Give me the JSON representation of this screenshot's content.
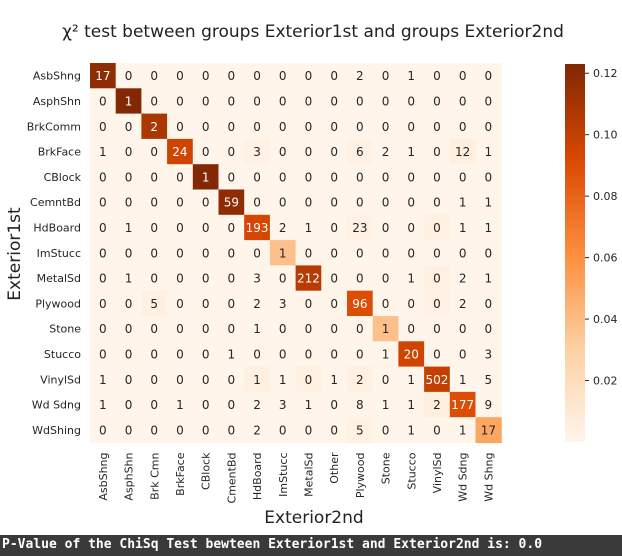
{
  "chart_data": {
    "type": "heatmap",
    "title": "χ² test between groups Exterior1st and groups Exterior2nd",
    "xlabel": "Exterior2nd",
    "ylabel": "Exterior1st",
    "rows": [
      "AsbShng",
      "AsphShn",
      "BrkComm",
      "BrkFace",
      "CBlock",
      "CemntBd",
      "HdBoard",
      "ImStucc",
      "MetalSd",
      "Plywood",
      "Stone",
      "Stucco",
      "VinylSd",
      "Wd Sdng",
      "WdShing"
    ],
    "columns": [
      "AsbShng",
      "AsphShn",
      "Brk Cmn",
      "BrkFace",
      "CBlock",
      "CmentBd",
      "HdBoard",
      "ImStucc",
      "MetalSd",
      "Other",
      "Plywood",
      "Stone",
      "Stucco",
      "VinylSd",
      "Wd Sdng",
      "Wd Shng"
    ],
    "values": [
      [
        17,
        0,
        0,
        0,
        0,
        0,
        0,
        0,
        0,
        0,
        2,
        0,
        1,
        0,
        0,
        0
      ],
      [
        0,
        1,
        0,
        0,
        0,
        0,
        0,
        0,
        0,
        0,
        0,
        0,
        0,
        0,
        0,
        0
      ],
      [
        0,
        0,
        2,
        0,
        0,
        0,
        0,
        0,
        0,
        0,
        0,
        0,
        0,
        0,
        0,
        0
      ],
      [
        1,
        0,
        0,
        24,
        0,
        0,
        3,
        0,
        0,
        0,
        6,
        2,
        1,
        0,
        12,
        1
      ],
      [
        0,
        0,
        0,
        0,
        1,
        0,
        0,
        0,
        0,
        0,
        0,
        0,
        0,
        0,
        0,
        0
      ],
      [
        0,
        0,
        0,
        0,
        0,
        59,
        0,
        0,
        0,
        0,
        0,
        0,
        0,
        0,
        1,
        1
      ],
      [
        0,
        1,
        0,
        0,
        0,
        0,
        193,
        2,
        1,
        0,
        23,
        0,
        0,
        0,
        1,
        1
      ],
      [
        0,
        0,
        0,
        0,
        0,
        0,
        0,
        1,
        0,
        0,
        0,
        0,
        0,
        0,
        0,
        0
      ],
      [
        0,
        1,
        0,
        0,
        0,
        0,
        3,
        0,
        212,
        0,
        0,
        0,
        1,
        0,
        2,
        1
      ],
      [
        0,
        0,
        5,
        0,
        0,
        0,
        2,
        3,
        0,
        0,
        96,
        0,
        0,
        0,
        2,
        0
      ],
      [
        0,
        0,
        0,
        0,
        0,
        0,
        1,
        0,
        0,
        0,
        0,
        1,
        0,
        0,
        0,
        0
      ],
      [
        0,
        0,
        0,
        0,
        0,
        1,
        0,
        0,
        0,
        0,
        0,
        1,
        20,
        0,
        0,
        3
      ],
      [
        1,
        0,
        0,
        0,
        0,
        0,
        1,
        1,
        0,
        1,
        2,
        0,
        1,
        502,
        1,
        5
      ],
      [
        1,
        0,
        0,
        1,
        0,
        0,
        2,
        3,
        1,
        0,
        8,
        1,
        1,
        2,
        177,
        9
      ],
      [
        0,
        0,
        0,
        0,
        0,
        0,
        2,
        0,
        0,
        0,
        5,
        0,
        1,
        0,
        1,
        17
      ]
    ],
    "highlight_cells": [
      [
        0,
        0,
        0.118
      ],
      [
        1,
        1,
        0.122
      ],
      [
        2,
        2,
        0.108
      ],
      [
        3,
        3,
        0.096
      ],
      [
        4,
        4,
        0.122
      ],
      [
        5,
        5,
        0.118
      ],
      [
        6,
        6,
        0.094
      ],
      [
        7,
        7,
        0.038
      ],
      [
        8,
        8,
        0.104
      ],
      [
        9,
        10,
        0.09
      ],
      [
        10,
        11,
        0.038
      ],
      [
        11,
        12,
        0.096
      ],
      [
        12,
        13,
        0.1
      ],
      [
        13,
        14,
        0.09
      ],
      [
        14,
        15,
        0.05
      ],
      [
        3,
        6,
        0.003
      ],
      [
        3,
        10,
        0.003
      ],
      [
        3,
        14,
        0.005
      ],
      [
        6,
        10,
        0.003
      ],
      [
        6,
        13,
        0.004
      ],
      [
        8,
        13,
        0.004
      ],
      [
        9,
        2,
        0.004
      ],
      [
        9,
        13,
        0.003
      ],
      [
        12,
        6,
        0.004
      ],
      [
        12,
        8,
        0.004
      ],
      [
        12,
        10,
        0.004
      ],
      [
        13,
        13,
        0.005
      ],
      [
        14,
        10,
        0.003
      ]
    ],
    "colorbar": {
      "min": 0,
      "max": 0.123,
      "ticks": [
        "0.02",
        "0.04",
        "0.06",
        "0.08",
        "0.10",
        "0.12"
      ],
      "tick_values": [
        0.02,
        0.04,
        0.06,
        0.08,
        0.1,
        0.12
      ]
    },
    "colors": {
      "low": "#fff5eb",
      "high": "#7f2704"
    }
  },
  "footer": {
    "text": "P-Value of the ChiSq Test bewteen Exterior1st and Exterior2nd is: 0.0"
  }
}
